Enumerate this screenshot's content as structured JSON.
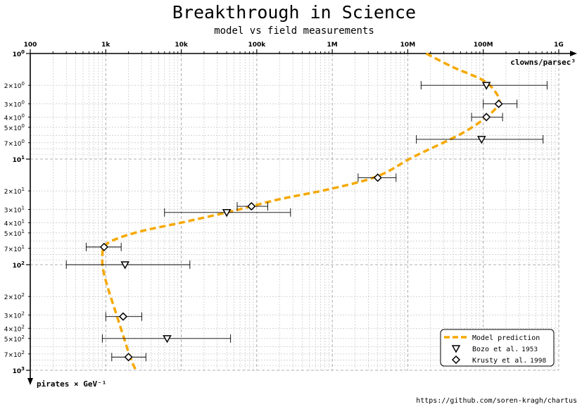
{
  "chart_data": {
    "type": "scatter",
    "title": "Breakthrough in Science",
    "subtitle": "model vs field measurements",
    "xlabel": "clowns/parsec³",
    "ylabel": "pirates × GeV⁻¹",
    "x_scale": "log",
    "y_scale": "log",
    "x_axis_position": "top",
    "y_axis_direction": "inverted",
    "xlim": [
      100,
      1000000000
    ],
    "ylim": [
      1,
      1000
    ],
    "x_ticks": [
      {
        "value": 100,
        "label": "100"
      },
      {
        "value": 1000,
        "label": "1k"
      },
      {
        "value": 10000,
        "label": "10k"
      },
      {
        "value": 100000,
        "label": "100k"
      },
      {
        "value": 1000000,
        "label": "1M"
      },
      {
        "value": 10000000,
        "label": "10M"
      },
      {
        "value": 100000000,
        "label": "100M"
      },
      {
        "value": 1000000000,
        "label": "1G"
      }
    ],
    "y_ticks": [
      {
        "value": 1,
        "base": "10",
        "exp": "0",
        "major": true
      },
      {
        "value": 2,
        "base": "2×10",
        "exp": "0",
        "major": false
      },
      {
        "value": 3,
        "base": "3×10",
        "exp": "0",
        "major": false
      },
      {
        "value": 4,
        "base": "4×10",
        "exp": "0",
        "major": false
      },
      {
        "value": 5,
        "base": "5×10",
        "exp": "0",
        "major": false
      },
      {
        "value": 7,
        "base": "7×10",
        "exp": "0",
        "major": false
      },
      {
        "value": 10,
        "base": "10",
        "exp": "1",
        "major": true
      },
      {
        "value": 20,
        "base": "2×10",
        "exp": "1",
        "major": false
      },
      {
        "value": 30,
        "base": "3×10",
        "exp": "1",
        "major": false
      },
      {
        "value": 40,
        "base": "4×10",
        "exp": "1",
        "major": false
      },
      {
        "value": 50,
        "base": "5×10",
        "exp": "1",
        "major": false
      },
      {
        "value": 70,
        "base": "7×10",
        "exp": "1",
        "major": false
      },
      {
        "value": 100,
        "base": "10",
        "exp": "2",
        "major": true
      },
      {
        "value": 200,
        "base": "2×10",
        "exp": "2",
        "major": false
      },
      {
        "value": 300,
        "base": "3×10",
        "exp": "2",
        "major": false
      },
      {
        "value": 400,
        "base": "4×10",
        "exp": "2",
        "major": false
      },
      {
        "value": 500,
        "base": "5×10",
        "exp": "2",
        "major": false
      },
      {
        "value": 700,
        "base": "7×10",
        "exp": "2",
        "major": false
      },
      {
        "value": 1000,
        "base": "10",
        "exp": "3",
        "major": true
      }
    ],
    "grid": true,
    "legend_position": "bottom-right",
    "colors": {
      "model": "#f5a800",
      "markers": "#000000",
      "grid": "#bbbbbb"
    },
    "series": [
      {
        "name": "Model prediction",
        "type": "line",
        "style": "dashed",
        "points": [
          {
            "x": 17500000,
            "y": 1.0
          },
          {
            "x": 40000000,
            "y": 1.35
          },
          {
            "x": 100000000,
            "y": 1.8
          },
          {
            "x": 150000000,
            "y": 2.4
          },
          {
            "x": 160000000,
            "y": 3.0
          },
          {
            "x": 110000000,
            "y": 4.0
          },
          {
            "x": 50000000,
            "y": 5.8
          },
          {
            "x": 12000000,
            "y": 9.5
          },
          {
            "x": 4000000,
            "y": 14.5
          },
          {
            "x": 1000000,
            "y": 19
          },
          {
            "x": 200000,
            "y": 24
          },
          {
            "x": 85000,
            "y": 28
          },
          {
            "x": 40000,
            "y": 32
          },
          {
            "x": 10000,
            "y": 40
          },
          {
            "x": 3000,
            "y": 48
          },
          {
            "x": 1300,
            "y": 58
          },
          {
            "x": 950,
            "y": 68
          },
          {
            "x": 900,
            "y": 85
          },
          {
            "x": 920,
            "y": 110
          },
          {
            "x": 1050,
            "y": 160
          },
          {
            "x": 1350,
            "y": 280
          },
          {
            "x": 1750,
            "y": 500
          },
          {
            "x": 2100,
            "y": 750
          },
          {
            "x": 2500,
            "y": 1000
          }
        ]
      },
      {
        "name": "Bozo et al.",
        "year": "1953",
        "type": "scatter",
        "marker": "triangle-down",
        "points": [
          {
            "x": 110000000,
            "y": 2.0,
            "xerr": [
              15000000,
              700000000
            ]
          },
          {
            "x": 95000000,
            "y": 6.5,
            "xerr": [
              13000000,
              620000000
            ]
          },
          {
            "x": 40000,
            "y": 32,
            "xerr": [
              6000,
              280000
            ]
          },
          {
            "x": 1800,
            "y": 100,
            "xerr": [
              300,
              13000
            ]
          },
          {
            "x": 6500,
            "y": 500,
            "xerr": [
              900,
              45000
            ]
          }
        ]
      },
      {
        "name": "Krusty et al.",
        "year": "1998",
        "type": "scatter",
        "marker": "diamond",
        "points": [
          {
            "x": 160000000,
            "y": 3.0,
            "xerr": [
              100000000,
              280000000
            ]
          },
          {
            "x": 110000000,
            "y": 4.0,
            "xerr": [
              70000000,
              180000000
            ]
          },
          {
            "x": 4000000,
            "y": 15,
            "xerr": [
              2200000,
              7000000
            ]
          },
          {
            "x": 85000,
            "y": 28,
            "xerr": [
              55000,
              140000
            ]
          },
          {
            "x": 950,
            "y": 68,
            "xerr": [
              550,
              1600
            ]
          },
          {
            "x": 1700,
            "y": 310,
            "xerr": [
              1000,
              3000
            ]
          },
          {
            "x": 2000,
            "y": 750,
            "xerr": [
              1200,
              3400
            ]
          }
        ]
      }
    ]
  },
  "credit": "https://github.com/soren-kragh/chartus"
}
